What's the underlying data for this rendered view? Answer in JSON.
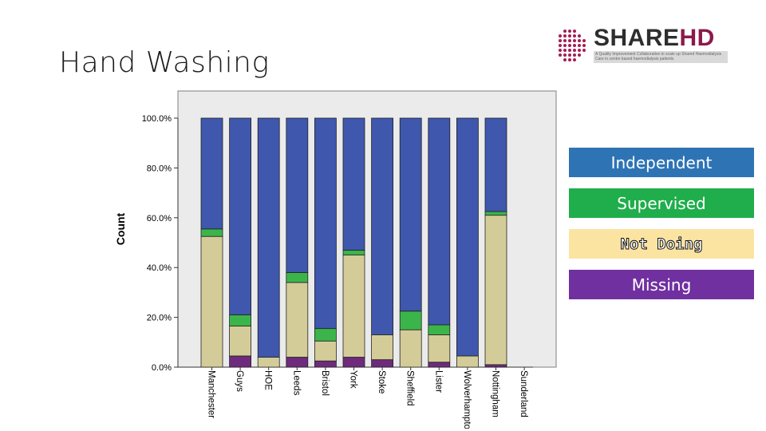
{
  "slide": {
    "title": "Hand Washing"
  },
  "logo": {
    "name_part1": "SHARE",
    "name_part2": "HD",
    "tagline": "A Quality Improvement Collaborative to scale up Shared Haemodialysis Care in centre based haemodialysis patients"
  },
  "legend": {
    "items": [
      {
        "label": "Independent",
        "color": "#2e74b5"
      },
      {
        "label": "Supervised",
        "color": "#1fae4b"
      },
      {
        "label": "Not Doing",
        "color": "#fbe3a2"
      },
      {
        "label": "Missing",
        "color": "#7030a0"
      }
    ]
  },
  "chart_data": {
    "type": "bar",
    "stacked": true,
    "ylabel": "Count",
    "ylim": [
      0,
      100
    ],
    "yticks": [
      "0.0%",
      "20.0%",
      "40.0%",
      "60.0%",
      "80.0%",
      "100.0%"
    ],
    "categories": [
      "Manchester",
      "Guys",
      "HOE",
      "Leeds",
      "Bristol",
      "York",
      "Stoke",
      "Sheffield",
      "Lister",
      "Wolverhampton",
      "Nottingham",
      "Sunderland"
    ],
    "series": [
      {
        "name": "Missing",
        "color": "#6e2a7c",
        "values": [
          0,
          4.5,
          0,
          4,
          2.5,
          4,
          3,
          0,
          2,
          0,
          1,
          0
        ]
      },
      {
        "name": "Not Doing",
        "color": "#d4cc98",
        "values": [
          52.5,
          12,
          4,
          30,
          8,
          41,
          10,
          15,
          11,
          4.5,
          60,
          0
        ]
      },
      {
        "name": "Supervised",
        "color": "#3bb54a",
        "values": [
          3,
          4.5,
          0,
          4,
          5,
          2,
          0,
          7.5,
          4,
          0,
          1.5,
          0
        ]
      },
      {
        "name": "Independent",
        "color": "#3f57ad",
        "values": [
          44.5,
          79,
          96,
          62,
          84.5,
          53,
          87,
          77.5,
          83,
          95.5,
          37.5,
          0
        ]
      }
    ]
  }
}
